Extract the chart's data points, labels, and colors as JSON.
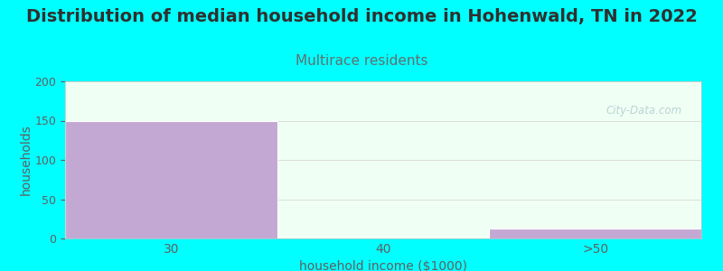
{
  "title": "Distribution of median household income in Hohenwald, TN in 2022",
  "subtitle": "Multirace residents",
  "xlabel": "household income ($1000)",
  "ylabel": "households",
  "background_color": "#00FFFF",
  "plot_bg_color": "#F0FFF4",
  "bar_color": "#C4A8D4",
  "categories": [
    "30",
    "40",
    ">50"
  ],
  "values": [
    150,
    0,
    13
  ],
  "ylim": [
    0,
    200
  ],
  "yticks": [
    0,
    50,
    100,
    150,
    200
  ],
  "title_fontsize": 14,
  "title_color": "#303030",
  "subtitle_fontsize": 11,
  "subtitle_color": "#607070",
  "axis_label_color": "#606060",
  "tick_color": "#606060",
  "watermark": "City-Data.com"
}
